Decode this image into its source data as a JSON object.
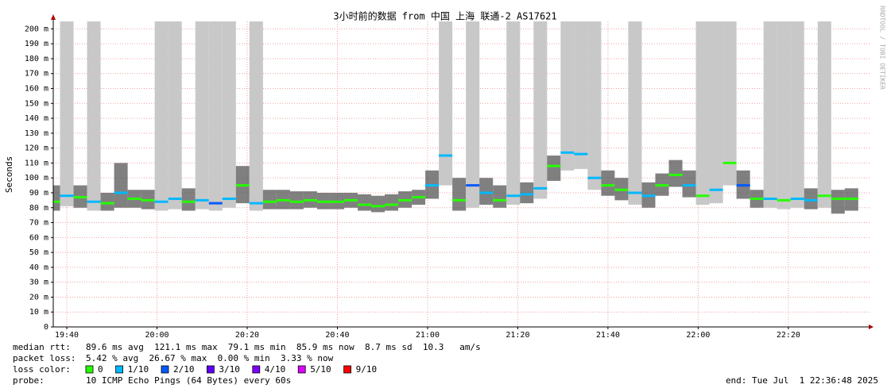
{
  "chart_data": {
    "type": "smokeping",
    "title": "3小时前的数据 from 中国 上海 联通-2 AS17621",
    "y_label": "Seconds",
    "watermark": "RRDTOOL / TOBI OETIKER",
    "ylim": [
      0,
      0.205
    ],
    "yticks": [
      0,
      {
        "value": 0.01,
        "label": "10 m"
      },
      {
        "value": 0.02,
        "label": "20 m"
      },
      {
        "value": 0.03,
        "label": "30 m"
      },
      {
        "value": 0.04,
        "label": "40 m"
      },
      {
        "value": 0.05,
        "label": "50 m"
      },
      {
        "value": 0.06,
        "label": "60 m"
      },
      {
        "value": 0.07,
        "label": "70 m"
      },
      {
        "value": 0.08,
        "label": "80 m"
      },
      {
        "value": 0.09,
        "label": "90 m"
      },
      {
        "value": 0.1,
        "label": "100 m"
      },
      {
        "value": 0.11,
        "label": "110 m"
      },
      {
        "value": 0.12,
        "label": "120 m"
      },
      {
        "value": 0.13,
        "label": "130 m"
      },
      {
        "value": 0.14,
        "label": "140 m"
      },
      {
        "value": 0.15,
        "label": "150 m"
      },
      {
        "value": 0.16,
        "label": "160 m"
      },
      {
        "value": 0.17,
        "label": "170 m"
      },
      {
        "value": 0.18,
        "label": "180 m"
      },
      {
        "value": 0.19,
        "label": "190 m"
      },
      {
        "value": 0.2,
        "label": "200 m"
      }
    ],
    "xlim": [
      "19:37",
      "22:38"
    ],
    "xticks": [
      "19:40",
      "20:00",
      "20:20",
      "20:40",
      "21:00",
      "21:20",
      "21:40",
      "22:00",
      "22:20"
    ],
    "x": [
      "19:37",
      "19:40",
      "19:43",
      "19:46",
      "19:49",
      "19:52",
      "19:55",
      "19:58",
      "20:01",
      "20:04",
      "20:07",
      "20:10",
      "20:13",
      "20:16",
      "20:19",
      "20:22",
      "20:25",
      "20:28",
      "20:31",
      "20:34",
      "20:37",
      "20:40",
      "20:43",
      "20:46",
      "20:49",
      "20:52",
      "20:55",
      "20:58",
      "21:01",
      "21:04",
      "21:07",
      "21:10",
      "21:13",
      "21:16",
      "21:19",
      "21:22",
      "21:25",
      "21:28",
      "21:31",
      "21:34",
      "21:37",
      "21:40",
      "21:43",
      "21:46",
      "21:49",
      "21:52",
      "21:55",
      "21:58",
      "22:01",
      "22:04",
      "22:07",
      "22:10",
      "22:13",
      "22:16",
      "22:19",
      "22:22",
      "22:25",
      "22:28",
      "22:31",
      "22:34"
    ],
    "median": [
      0.084,
      0.088,
      0.087,
      0.084,
      0.083,
      0.09,
      0.086,
      0.085,
      0.084,
      0.086,
      0.084,
      0.085,
      0.083,
      0.086,
      0.095,
      0.083,
      0.084,
      0.085,
      0.084,
      0.085,
      0.084,
      0.084,
      0.085,
      0.082,
      0.081,
      0.082,
      0.085,
      0.087,
      0.095,
      0.115,
      0.085,
      0.095,
      0.09,
      0.085,
      0.088,
      0.089,
      0.093,
      0.108,
      0.117,
      0.116,
      0.1,
      0.095,
      0.092,
      0.09,
      0.088,
      0.095,
      0.102,
      0.095,
      0.088,
      0.092,
      0.11,
      0.095,
      0.086,
      0.086,
      0.085,
      0.086,
      0.085,
      0.088,
      0.086,
      0.086
    ],
    "smoke_min": [
      0.078,
      0.081,
      0.08,
      0.078,
      0.078,
      0.08,
      0.08,
      0.079,
      0.078,
      0.079,
      0.078,
      0.079,
      0.078,
      0.08,
      0.083,
      0.078,
      0.079,
      0.079,
      0.079,
      0.08,
      0.079,
      0.079,
      0.08,
      0.078,
      0.077,
      0.078,
      0.08,
      0.082,
      0.086,
      0.095,
      0.078,
      0.08,
      0.082,
      0.08,
      0.082,
      0.083,
      0.086,
      0.098,
      0.105,
      0.106,
      0.092,
      0.088,
      0.085,
      0.082,
      0.08,
      0.088,
      0.094,
      0.087,
      0.082,
      0.083,
      0.095,
      0.086,
      0.08,
      0.08,
      0.079,
      0.08,
      0.079,
      0.08,
      0.076,
      0.078
    ],
    "smoke_max": [
      0.095,
      0.21,
      0.095,
      0.21,
      0.09,
      0.11,
      0.092,
      0.092,
      0.21,
      0.21,
      0.093,
      0.21,
      0.21,
      0.21,
      0.108,
      0.21,
      0.092,
      0.092,
      0.091,
      0.091,
      0.09,
      0.09,
      0.09,
      0.089,
      0.088,
      0.089,
      0.091,
      0.092,
      0.105,
      0.21,
      0.1,
      0.21,
      0.1,
      0.095,
      0.21,
      0.097,
      0.21,
      0.115,
      0.21,
      0.21,
      0.21,
      0.105,
      0.1,
      0.21,
      0.097,
      0.103,
      0.112,
      0.105,
      0.21,
      0.21,
      0.21,
      0.105,
      0.092,
      0.21,
      0.21,
      0.21,
      0.093,
      0.21,
      0.092,
      0.093
    ],
    "loss": [
      0,
      1,
      0,
      1,
      0,
      1,
      0,
      0,
      1,
      1,
      0,
      1,
      2,
      1,
      0,
      1,
      0,
      0,
      0,
      0,
      0,
      0,
      0,
      0,
      0,
      0,
      0,
      0,
      1,
      1,
      0,
      2,
      1,
      0,
      1,
      1,
      1,
      0,
      1,
      1,
      1,
      0,
      0,
      1,
      1,
      0,
      0,
      1,
      0,
      1,
      0,
      2,
      0,
      1,
      0,
      1,
      1,
      0,
      0,
      0
    ],
    "stats": [
      {
        "label": "median rtt:",
        "text": "89.6 ms avg  121.1 ms max  79.1 ms min  85.9 ms now  8.7 ms sd  10.3   am/s"
      },
      {
        "label": "packet loss:",
        "text": "5.42 % avg  26.67 % max  0.00 % min  3.33 % now"
      }
    ],
    "loss_label": "loss color:",
    "legend": [
      {
        "label": "0",
        "color": "#26ff00",
        "max_loss": 0
      },
      {
        "label": "1/10",
        "color": "#00b8ff",
        "max_loss": 1
      },
      {
        "label": "2/10",
        "color": "#0059ff",
        "max_loss": 2
      },
      {
        "label": "3/10",
        "color": "#5e00ff",
        "max_loss": 3
      },
      {
        "label": "4/10",
        "color": "#7e00ff",
        "max_loss": 4
      },
      {
        "label": "5/10",
        "color": "#dd00ff",
        "max_loss": 8
      },
      {
        "label": "9/10",
        "color": "#ff0000",
        "max_loss": 10
      }
    ],
    "probe_label": "probe:",
    "probe": "10 ICMP Echo Pings (64 Bytes) every 60s",
    "end": "end: Tue Jul  1 22:36:48 2025"
  }
}
